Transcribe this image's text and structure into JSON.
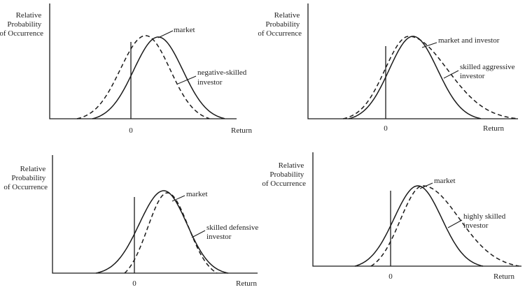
{
  "panels": [
    {
      "ylabel_lines": [
        "Relative",
        "Probability",
        "of Occurrence"
      ],
      "xlabel": "Return",
      "zero_label": "0",
      "labels": [
        {
          "lines": [
            "market"
          ]
        },
        {
          "lines": [
            "negative-skilled",
            "investor"
          ]
        }
      ]
    },
    {
      "ylabel_lines": [
        "Relative",
        "Probability",
        "of Occurrence"
      ],
      "xlabel": "Return",
      "zero_label": "0",
      "labels": [
        {
          "lines": [
            "market and investor"
          ]
        },
        {
          "lines": [
            "skilled aggressive",
            "investor"
          ]
        }
      ]
    },
    {
      "ylabel_lines": [
        "Relative",
        "Probability",
        "of Occurrence"
      ],
      "xlabel": "Return",
      "zero_label": "0",
      "labels": [
        {
          "lines": [
            "market"
          ]
        },
        {
          "lines": [
            "skilled defensive",
            "investor"
          ]
        }
      ]
    },
    {
      "ylabel_lines": [
        "Relative",
        "Probability",
        "of Occurrence"
      ],
      "xlabel": "Return",
      "zero_label": "0",
      "labels": [
        {
          "lines": [
            "market"
          ]
        },
        {
          "lines": [
            "highly skilled",
            "investor"
          ]
        }
      ]
    }
  ]
}
